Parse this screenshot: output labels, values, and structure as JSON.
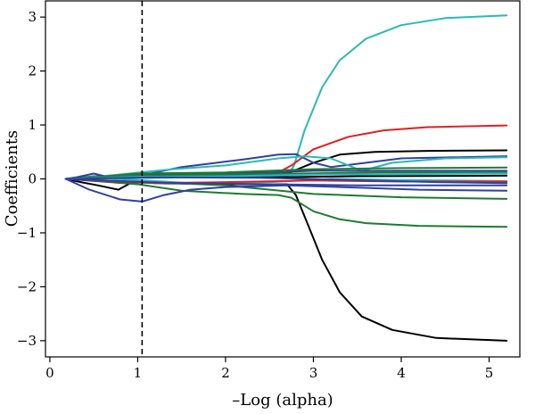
{
  "chart_data": {
    "type": "line",
    "title": "",
    "xlabel": "–Log (alpha)",
    "ylabel": "Coefficients",
    "xlim": [
      -0.05,
      5.35
    ],
    "ylim": [
      -3.3,
      3.3
    ],
    "xticks": [
      0,
      1,
      2,
      3,
      4,
      5
    ],
    "yticks": [
      -3,
      -2,
      -1,
      0,
      1,
      2,
      3
    ],
    "xtick_labels": [
      "0",
      "1",
      "2",
      "3",
      "4",
      "5"
    ],
    "ytick_labels": [
      "−3",
      "−2",
      "−1",
      "0",
      "1",
      "2",
      "3"
    ],
    "grid": false,
    "legend": "none",
    "reference_line": {
      "x": 1.05,
      "style": "dashed"
    },
    "series": [
      {
        "color": "#2bb8b8",
        "points": [
          [
            0.18,
            0
          ],
          [
            2.7,
            0.05
          ],
          [
            2.78,
            0.25
          ],
          [
            2.9,
            0.9
          ],
          [
            3.1,
            1.7
          ],
          [
            3.3,
            2.2
          ],
          [
            3.6,
            2.6
          ],
          [
            4.0,
            2.85
          ],
          [
            4.5,
            2.98
          ],
          [
            5.2,
            3.03
          ]
        ]
      },
      {
        "color": "#e02020",
        "points": [
          [
            0.18,
            0
          ],
          [
            2.6,
            0.12
          ],
          [
            2.75,
            0.25
          ],
          [
            3.0,
            0.55
          ],
          [
            3.4,
            0.78
          ],
          [
            3.8,
            0.9
          ],
          [
            4.3,
            0.96
          ],
          [
            5.2,
            0.99
          ]
        ]
      },
      {
        "color": "#000000",
        "points": [
          [
            0.18,
            0
          ],
          [
            0.35,
            -0.06
          ],
          [
            0.55,
            -0.12
          ],
          [
            0.78,
            -0.2
          ],
          [
            0.95,
            -0.05
          ],
          [
            1.2,
            -0.08
          ],
          [
            2.0,
            -0.1
          ],
          [
            2.7,
            -0.1
          ],
          [
            2.8,
            -0.3
          ],
          [
            2.95,
            -0.9
          ],
          [
            3.1,
            -1.5
          ],
          [
            3.3,
            -2.1
          ],
          [
            3.55,
            -2.55
          ],
          [
            3.9,
            -2.8
          ],
          [
            4.4,
            -2.95
          ],
          [
            5.2,
            -3.0
          ]
        ]
      },
      {
        "color": "#000000",
        "points": [
          [
            0.18,
            0
          ],
          [
            0.8,
            0.05
          ],
          [
            1.5,
            0.06
          ],
          [
            2.2,
            0.07
          ],
          [
            2.7,
            0.1
          ],
          [
            3.0,
            0.3
          ],
          [
            3.3,
            0.45
          ],
          [
            3.7,
            0.5
          ],
          [
            4.3,
            0.52
          ],
          [
            5.2,
            0.53
          ]
        ]
      },
      {
        "color": "#1e7b30",
        "points": [
          [
            0.18,
            0
          ],
          [
            1.0,
            -0.1
          ],
          [
            1.5,
            -0.22
          ],
          [
            2.2,
            -0.28
          ],
          [
            2.6,
            -0.3
          ],
          [
            2.75,
            -0.35
          ],
          [
            3.0,
            -0.6
          ],
          [
            3.3,
            -0.75
          ],
          [
            3.6,
            -0.82
          ],
          [
            4.2,
            -0.87
          ],
          [
            5.2,
            -0.89
          ]
        ]
      },
      {
        "color": "#1e7b30",
        "points": [
          [
            0.18,
            0
          ],
          [
            1.0,
            -0.05
          ],
          [
            2.0,
            -0.12
          ],
          [
            3.0,
            -0.28
          ],
          [
            4.0,
            -0.34
          ],
          [
            5.2,
            -0.37
          ]
        ]
      },
      {
        "color": "#3040a0",
        "points": [
          [
            0.18,
            0
          ],
          [
            0.45,
            -0.2
          ],
          [
            0.8,
            -0.38
          ],
          [
            1.05,
            -0.42
          ],
          [
            1.3,
            -0.3
          ],
          [
            1.6,
            -0.2
          ],
          [
            2.0,
            -0.15
          ],
          [
            2.7,
            -0.12
          ],
          [
            3.5,
            -0.16
          ],
          [
            4.2,
            -0.2
          ],
          [
            5.2,
            -0.22
          ]
        ]
      },
      {
        "color": "#3040a0",
        "points": [
          [
            0.18,
            0
          ],
          [
            0.5,
            0.05
          ],
          [
            1.0,
            0.05
          ],
          [
            1.5,
            0.22
          ],
          [
            1.8,
            0.28
          ],
          [
            2.2,
            0.36
          ],
          [
            2.6,
            0.45
          ],
          [
            2.8,
            0.46
          ],
          [
            3.0,
            0.3
          ],
          [
            3.2,
            0.22
          ],
          [
            3.5,
            0.28
          ],
          [
            4.0,
            0.38
          ],
          [
            5.2,
            0.42
          ]
        ]
      },
      {
        "color": "#2bb8b8",
        "points": [
          [
            0.18,
            0
          ],
          [
            0.6,
            0.05
          ],
          [
            0.9,
            0.1
          ],
          [
            1.4,
            0.18
          ],
          [
            2.0,
            0.25
          ],
          [
            2.6,
            0.38
          ],
          [
            2.9,
            0.42
          ],
          [
            3.2,
            0.38
          ],
          [
            3.55,
            0.15
          ],
          [
            3.9,
            0.3
          ],
          [
            4.5,
            0.38
          ],
          [
            5.2,
            0.4
          ]
        ]
      },
      {
        "color": "#3040a0",
        "points": [
          [
            0.18,
            0
          ],
          [
            0.3,
            0.03
          ],
          [
            0.5,
            0.1
          ],
          [
            0.7,
            0.02
          ],
          [
            1.0,
            0.08
          ],
          [
            1.5,
            0.1
          ],
          [
            2.5,
            0.12
          ],
          [
            3.0,
            0.15
          ],
          [
            4.0,
            0.15
          ],
          [
            5.2,
            0.15
          ]
        ]
      },
      {
        "color": "#2bb8b8",
        "points": [
          [
            0.18,
            0
          ],
          [
            0.5,
            0.02
          ],
          [
            1.0,
            -0.02
          ],
          [
            1.6,
            -0.08
          ],
          [
            2.5,
            -0.06
          ],
          [
            3.2,
            0.0
          ],
          [
            4.0,
            -0.02
          ],
          [
            5.2,
            -0.04
          ]
        ]
      },
      {
        "color": "#1e7b30",
        "points": [
          [
            0.18,
            0
          ],
          [
            0.5,
            0.03
          ],
          [
            1.0,
            0.1
          ],
          [
            2.0,
            0.12
          ],
          [
            3.0,
            0.18
          ],
          [
            4.0,
            0.2
          ],
          [
            5.2,
            0.21
          ]
        ]
      },
      {
        "color": "#e02020",
        "points": [
          [
            0.18,
            0
          ],
          [
            0.7,
            -0.05
          ],
          [
            1.2,
            -0.08
          ],
          [
            2.0,
            -0.06
          ],
          [
            3.0,
            -0.03
          ],
          [
            4.0,
            -0.05
          ],
          [
            5.2,
            -0.05
          ]
        ]
      },
      {
        "color": "#3040a0",
        "points": [
          [
            0.18,
            0
          ],
          [
            0.7,
            -0.04
          ],
          [
            1.5,
            -0.08
          ],
          [
            2.5,
            -0.1
          ],
          [
            3.5,
            -0.12
          ],
          [
            5.2,
            -0.12
          ]
        ]
      },
      {
        "color": "#000000",
        "points": [
          [
            0.18,
            0
          ],
          [
            0.8,
            0.02
          ],
          [
            1.5,
            0.04
          ],
          [
            2.5,
            0.03
          ],
          [
            3.5,
            0.05
          ],
          [
            5.2,
            0.06
          ]
        ]
      },
      {
        "color": "#1e7b30",
        "points": [
          [
            0.18,
            0
          ],
          [
            0.9,
            0.06
          ],
          [
            1.8,
            0.08
          ],
          [
            2.8,
            0.1
          ],
          [
            3.8,
            0.12
          ],
          [
            5.2,
            0.12
          ]
        ]
      },
      {
        "color": "#2bb8b8",
        "points": [
          [
            0.18,
            0
          ],
          [
            1.0,
            0.04
          ],
          [
            2.0,
            0.05
          ],
          [
            3.0,
            0.08
          ],
          [
            4.0,
            0.09
          ],
          [
            5.2,
            0.1
          ]
        ]
      },
      {
        "color": "#3040a0",
        "points": [
          [
            0.18,
            0
          ],
          [
            1.2,
            0.03
          ],
          [
            2.4,
            0.02
          ],
          [
            3.4,
            -0.02
          ],
          [
            4.4,
            -0.06
          ],
          [
            5.2,
            -0.08
          ]
        ]
      }
    ]
  }
}
